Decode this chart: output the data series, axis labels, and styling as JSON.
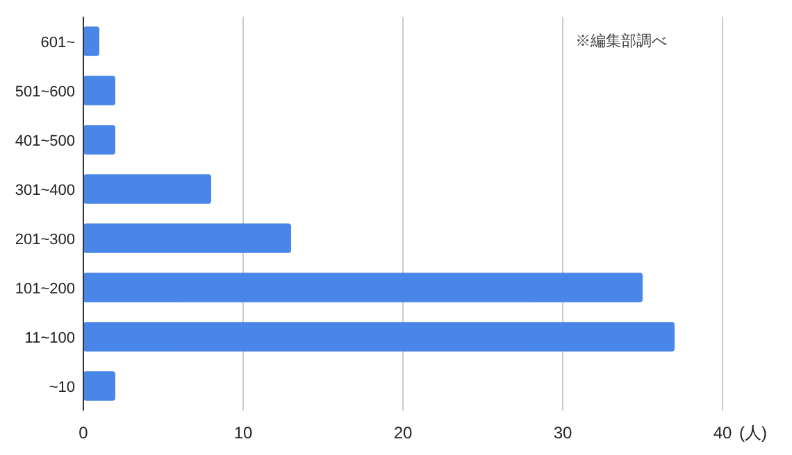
{
  "chart_data": {
    "type": "bar",
    "orientation": "horizontal",
    "categories": [
      "601~",
      "501~600",
      "401~500",
      "301~400",
      "201~300",
      "101~200",
      "11~100",
      "~10"
    ],
    "series": [
      {
        "color": "#4a86e8",
        "values": [
          1,
          2,
          2,
          8,
          13,
          35,
          37,
          2
        ]
      }
    ],
    "xlim": [
      0,
      40
    ],
    "xticks": [
      0,
      10,
      20,
      30,
      40
    ],
    "xlabel": "(人)",
    "grid": "x",
    "annotations": [
      "※編集部調べ"
    ]
  }
}
